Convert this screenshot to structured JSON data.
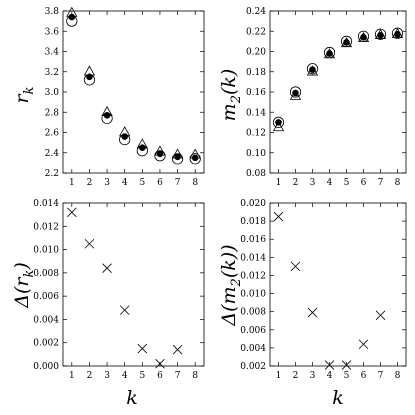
{
  "chart_data": [
    {
      "type": "scatter",
      "title": "",
      "ylabel": "r",
      "ylabel_sub": "k",
      "xlabel": "",
      "xlim": [
        0.5,
        8.5
      ],
      "ylim": [
        2.2,
        3.8
      ],
      "xticks": [
        "1",
        "2",
        "3",
        "4",
        "5",
        "6",
        "7",
        "8"
      ],
      "yticks": [
        "2.2",
        "2.4",
        "2.6",
        "2.8",
        "3.0",
        "3.2",
        "3.4",
        "3.6",
        "3.8"
      ],
      "x": [
        1,
        2,
        3,
        4,
        5,
        6,
        7,
        8
      ],
      "series": [
        {
          "marker": "circle-open",
          "values": [
            3.7,
            3.12,
            2.74,
            2.53,
            2.42,
            2.37,
            2.34,
            2.34
          ]
        },
        {
          "marker": "triangle-open",
          "values": [
            3.78,
            3.2,
            2.8,
            2.6,
            2.48,
            2.41,
            2.38,
            2.38
          ]
        },
        {
          "marker": "circle-filled",
          "values": [
            3.74,
            3.15,
            2.77,
            2.56,
            2.45,
            2.39,
            2.36,
            2.35
          ]
        }
      ]
    },
    {
      "type": "scatter",
      "title": "",
      "ylabel": "m",
      "ylabel_sub": "2",
      "ylabel_arg": "(k)",
      "xlabel": "",
      "xlim": [
        0.5,
        8.5
      ],
      "ylim": [
        0.08,
        0.24
      ],
      "xticks": [
        "1",
        "2",
        "3",
        "4",
        "5",
        "6",
        "7",
        "8"
      ],
      "yticks": [
        "0.08",
        "0.10",
        "0.12",
        "0.14",
        "0.16",
        "0.18",
        "0.20",
        "0.22",
        "0.24"
      ],
      "x": [
        1,
        2,
        3,
        4,
        5,
        6,
        7,
        8
      ],
      "series": [
        {
          "marker": "circle-open",
          "values": [
            0.13,
            0.16,
            0.183,
            0.199,
            0.21,
            0.215,
            0.217,
            0.218
          ]
        },
        {
          "marker": "triangle-open",
          "values": [
            0.125,
            0.156,
            0.18,
            0.197,
            0.208,
            0.213,
            0.216,
            0.217
          ]
        },
        {
          "marker": "circle-filled",
          "values": [
            0.13,
            0.159,
            0.182,
            0.198,
            0.209,
            0.214,
            0.216,
            0.217
          ]
        }
      ]
    },
    {
      "type": "scatter",
      "title": "",
      "ylabel": "Δ(r",
      "ylabel_sub": "k",
      "ylabel_tail": ")",
      "xlabel": "k",
      "xlim": [
        0.5,
        8.5
      ],
      "ylim": [
        0.0,
        0.014
      ],
      "xticks": [
        "1",
        "2",
        "3",
        "4",
        "5",
        "6",
        "7",
        "8"
      ],
      "yticks": [
        "0.000",
        "0.002",
        "0.004",
        "0.006",
        "0.008",
        "0.010",
        "0.012",
        "0.014"
      ],
      "x": [
        1,
        2,
        3,
        4,
        5,
        6,
        7
      ],
      "series": [
        {
          "marker": "cross",
          "values": [
            0.0132,
            0.0105,
            0.0084,
            0.0048,
            0.0015,
            0.0002,
            0.0014
          ]
        }
      ]
    },
    {
      "type": "scatter",
      "title": "",
      "ylabel": "Δ(m",
      "ylabel_sub": "2",
      "ylabel_tail": "(k))",
      "xlabel": "k",
      "xlim": [
        0.5,
        8.5
      ],
      "ylim": [
        0.002,
        0.02
      ],
      "xticks": [
        "1",
        "2",
        "3",
        "4",
        "5",
        "6",
        "7",
        "8"
      ],
      "yticks": [
        "0.002",
        "0.004",
        "0.006",
        "0.008",
        "0.010",
        "0.012",
        "0.014",
        "0.016",
        "0.018",
        "0.020"
      ],
      "x": [
        1,
        2,
        3,
        4,
        5,
        6,
        7
      ],
      "series": [
        {
          "marker": "cross",
          "values": [
            0.0185,
            0.013,
            0.0079,
            0.0021,
            0.0021,
            0.0044,
            0.0076
          ]
        }
      ]
    }
  ]
}
